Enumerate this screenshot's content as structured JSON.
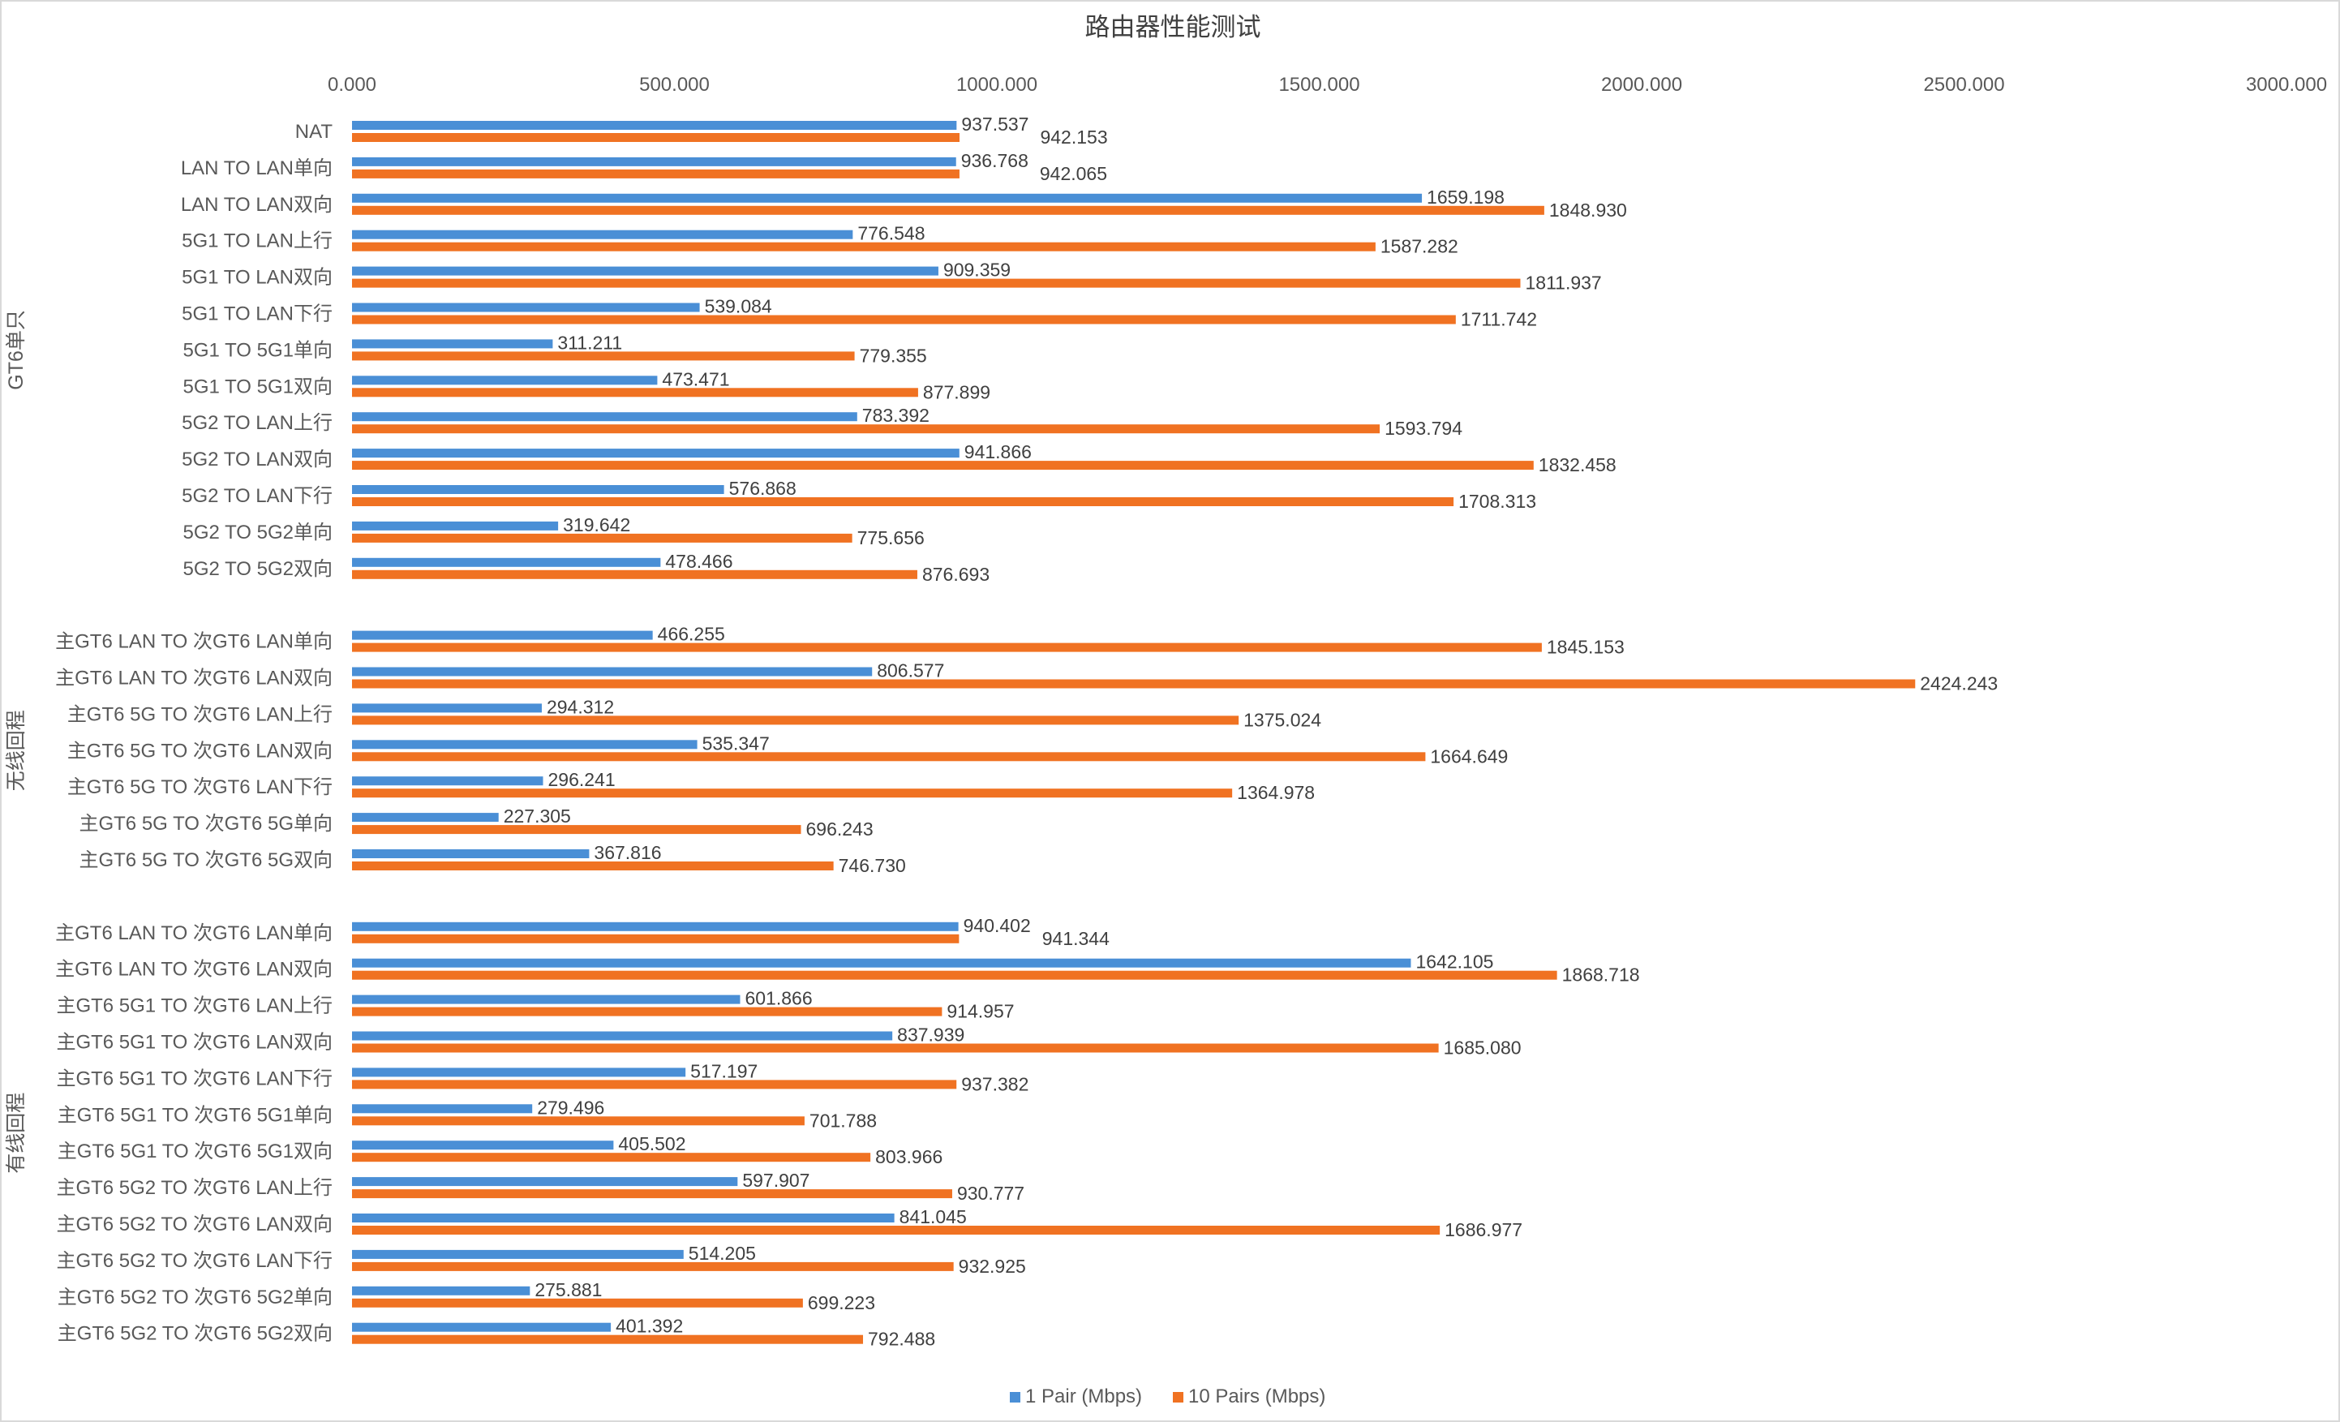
{
  "chart_data": {
    "type": "bar",
    "orientation": "horizontal",
    "title": "路由器性能测试",
    "xlim": [
      0,
      3000
    ],
    "xticks": [
      "0.000",
      "500.000",
      "1000.000",
      "1500.000",
      "2000.000",
      "2500.000",
      "3000.000"
    ],
    "xtick_values": [
      0,
      500,
      1000,
      1500,
      2000,
      2500,
      3000
    ],
    "grid": false,
    "legend_position": "bottom",
    "colors": {
      "1 Pair (Mbps)": "#4a8fd6",
      "10  Pairs  (Mbps)": "#f07222"
    },
    "series_names": [
      "1 Pair (Mbps)",
      "10  Pairs  (Mbps)"
    ],
    "groups": [
      {
        "name": "GT6单只",
        "categories": [
          "NAT",
          "LAN TO LAN单向",
          "LAN TO LAN双向",
          "5G1 TO LAN上行",
          "5G1 TO LAN双向",
          "5G1 TO LAN下行",
          "5G1 TO 5G1单向",
          "5G1 TO 5G1双向",
          "5G2 TO  LAN上行",
          "5G2 TO  LAN双向",
          "5G2 TO  LAN下行",
          "5G2 TO 5G2单向",
          "5G2 TO 5G2双向"
        ],
        "pair1": [
          937.537,
          936.768,
          1659.198,
          776.548,
          909.359,
          539.084,
          311.211,
          473.471,
          783.392,
          941.866,
          576.868,
          319.642,
          478.466
        ],
        "pair10": [
          942.153,
          942.065,
          1848.93,
          1587.282,
          1811.937,
          1711.742,
          779.355,
          877.899,
          1593.794,
          1832.458,
          1708.313,
          775.656,
          876.693
        ]
      },
      {
        "name": "无线回程",
        "categories": [
          "主GT6 LAN TO 次GT6 LAN单向",
          "主GT6 LAN TO 次GT6 LAN双向",
          "主GT6  5G TO 次GT6 LAN上行",
          "主GT6 5G TO 次GT6 LAN双向",
          "主GT6 5G TO 次GT6 LAN下行",
          "主GT6 5G TO 次GT6 5G单向",
          "主GT6 5G TO 次GT6 5G双向"
        ],
        "pair1": [
          466.255,
          806.577,
          294.312,
          535.347,
          296.241,
          227.305,
          367.816
        ],
        "pair10": [
          1845.153,
          2424.243,
          1375.024,
          1664.649,
          1364.978,
          696.243,
          746.73
        ]
      },
      {
        "name": "有线回程",
        "categories": [
          "主GT6 LAN TO 次GT6 LAN单向",
          "主GT6 LAN TO 次GT6 LAN双向",
          "主GT6  5G1 TO 次GT6 LAN上行",
          "主GT6 5G1 TO  次GT6 LAN双向",
          "主GT6 5G1 TO 次GT6 LAN下行",
          "主GT6 5G1 TO 次GT6 5G1单向",
          "主GT6 5G1 TO 次GT6 5G1双向",
          "主GT6 5G2 TO  次GT6 LAN上行",
          "主GT6 5G2 TO  次GT6 LAN双向",
          "主GT6 5G2 TO 次GT6 LAN下行",
          "主GT6 5G2 TO 次GT6 5G2单向",
          "主GT6 5G2 TO 次GT6 5G2双向"
        ],
        "pair1": [
          940.402,
          1642.105,
          601.866,
          837.939,
          517.197,
          279.496,
          405.502,
          597.907,
          841.045,
          514.205,
          275.881,
          401.392
        ],
        "pair10": [
          941.344,
          1868.718,
          914.957,
          1685.08,
          937.382,
          701.788,
          803.966,
          930.777,
          1686.977,
          932.925,
          699.223,
          792.488
        ]
      }
    ]
  }
}
